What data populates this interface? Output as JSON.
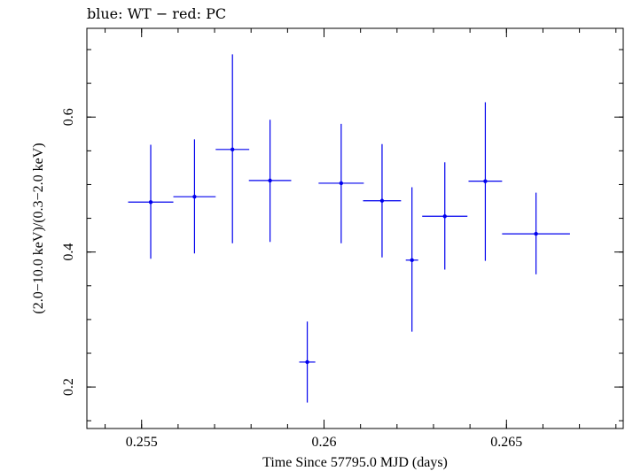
{
  "chart_data": {
    "type": "scatter",
    "title": "blue: WT − red: PC",
    "xlabel": "Time Since 57795.0 MJD (days)",
    "ylabel": "(2.0−10.0 keV)/(0.3−2.0 keV)",
    "xlim": [
      0.2535,
      0.2682
    ],
    "ylim": [
      0.1385,
      0.7315
    ],
    "xticks": [
      {
        "value": 0.255,
        "label": "0.255"
      },
      {
        "value": 0.26,
        "label": "0.26"
      },
      {
        "value": 0.265,
        "label": "0.265"
      }
    ],
    "yticks": [
      {
        "value": 0.2,
        "label": "0.2"
      },
      {
        "value": 0.4,
        "label": "0.4"
      },
      {
        "value": 0.6,
        "label": "0.6"
      }
    ],
    "grid": false,
    "series": [
      {
        "color": "#0000ee",
        "points": [
          {
            "x": 0.25525,
            "xerr": 0.00062,
            "y": 0.474,
            "ylo": 0.39,
            "yhi": 0.559
          },
          {
            "x": 0.25645,
            "xerr": 0.00058,
            "y": 0.482,
            "ylo": 0.398,
            "yhi": 0.567
          },
          {
            "x": 0.25749,
            "xerr": 0.00046,
            "y": 0.552,
            "ylo": 0.413,
            "yhi": 0.693
          },
          {
            "x": 0.25852,
            "xerr": 0.00058,
            "y": 0.506,
            "ylo": 0.415,
            "yhi": 0.596
          },
          {
            "x": 0.25954,
            "xerr": 0.00022,
            "y": 0.237,
            "ylo": 0.177,
            "yhi": 0.297
          },
          {
            "x": 0.26047,
            "xerr": 0.00062,
            "y": 0.502,
            "ylo": 0.413,
            "yhi": 0.59
          },
          {
            "x": 0.26159,
            "xerr": 0.00052,
            "y": 0.476,
            "ylo": 0.392,
            "yhi": 0.56
          },
          {
            "x": 0.26241,
            "xerr": 0.00017,
            "y": 0.388,
            "ylo": 0.282,
            "yhi": 0.496
          },
          {
            "x": 0.26331,
            "xerr": 0.00062,
            "y": 0.453,
            "ylo": 0.374,
            "yhi": 0.533
          },
          {
            "x": 0.26442,
            "xerr": 0.00046,
            "y": 0.505,
            "ylo": 0.387,
            "yhi": 0.622
          },
          {
            "x": 0.26581,
            "xerr": 0.00093,
            "y": 0.427,
            "ylo": 0.367,
            "yhi": 0.488
          }
        ]
      }
    ]
  }
}
